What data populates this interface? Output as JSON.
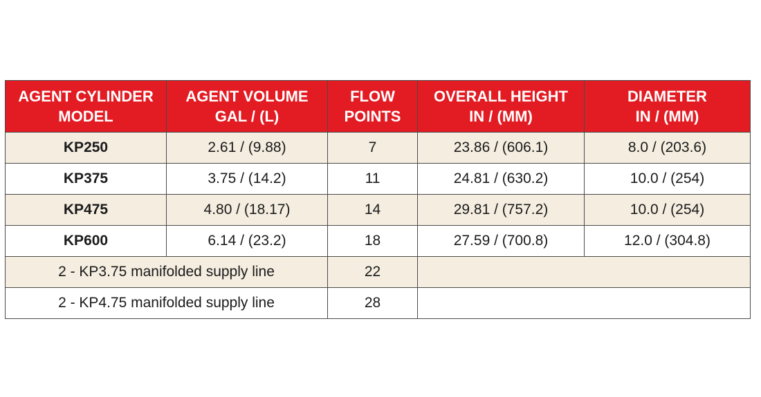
{
  "table": {
    "headers": [
      [
        "AGENT CYLINDER",
        "MODEL"
      ],
      [
        "AGENT VOLUME",
        "GAL / (L)"
      ],
      [
        "FLOW",
        "POINTS"
      ],
      [
        "OVERALL HEIGHT",
        "IN / (MM)"
      ],
      [
        "DIAMETER",
        "IN / (MM)"
      ]
    ],
    "rows": [
      {
        "model": "KP250",
        "volume": "2.61 / (9.88)",
        "flow": "7",
        "height": "23.86 / (606.1)",
        "diameter": "8.0 / (203.6)"
      },
      {
        "model": "KP375",
        "volume": "3.75 / (14.2)",
        "flow": "11",
        "height": "24.81 / (630.2)",
        "diameter": "10.0 / (254)"
      },
      {
        "model": "KP475",
        "volume": "4.80 / (18.17)",
        "flow": "14",
        "height": "29.81 / (757.2)",
        "diameter": "10.0 / (254)"
      },
      {
        "model": "KP600",
        "volume": "6.14 / (23.2)",
        "flow": "18",
        "height": "27.59 / (700.8)",
        "diameter": "12.0 / (304.8)"
      }
    ],
    "manifold_rows": [
      {
        "label": "2 - KP3.75 manifolded supply line",
        "flow": "22"
      },
      {
        "label": "2 - KP4.75 manifolded supply line",
        "flow": "28"
      }
    ]
  },
  "colors": {
    "header_bg": "#e31b23",
    "header_text": "#ffffff",
    "stripe_bg": "#f4ede0",
    "border": "#4a4a4a"
  }
}
